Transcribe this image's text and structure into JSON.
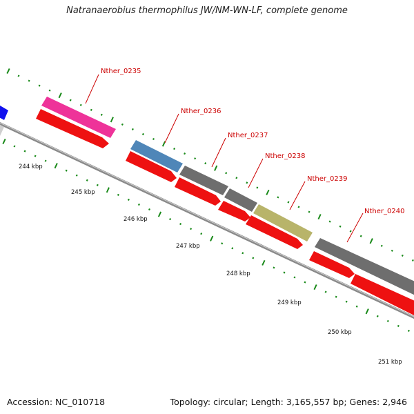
{
  "title": "Natranaerobius thermophilus JW/NM-WN-LF, complete genome",
  "accession": "Accession: NC_010718",
  "summary": "Topology: circular; Length: 3,165,557 bp; Genes: 2,946",
  "colors": {
    "backbone": "#8a8a8a",
    "cds": "#ee1111",
    "tick": "#1a8a1a",
    "label": "#cc0000"
  },
  "genes": [
    {
      "id": "Nther_0235",
      "color": "#ee3399"
    },
    {
      "id": "Nther_0236",
      "color": "#4f86b8"
    },
    {
      "id": "Nther_0237",
      "color": "#6e6e6e"
    },
    {
      "id": "Nther_0238",
      "color": "#6e6e6e"
    },
    {
      "id": "Nther_0239",
      "color": "#b8b46a"
    },
    {
      "id": "Nther_0240",
      "color": "#6e6e6e"
    }
  ],
  "scale_labels": [
    "244 kbp",
    "245 kbp",
    "246 kbp",
    "247 kbp",
    "248 kbp",
    "249 kbp",
    "250 kbp",
    "251 kbp"
  ]
}
